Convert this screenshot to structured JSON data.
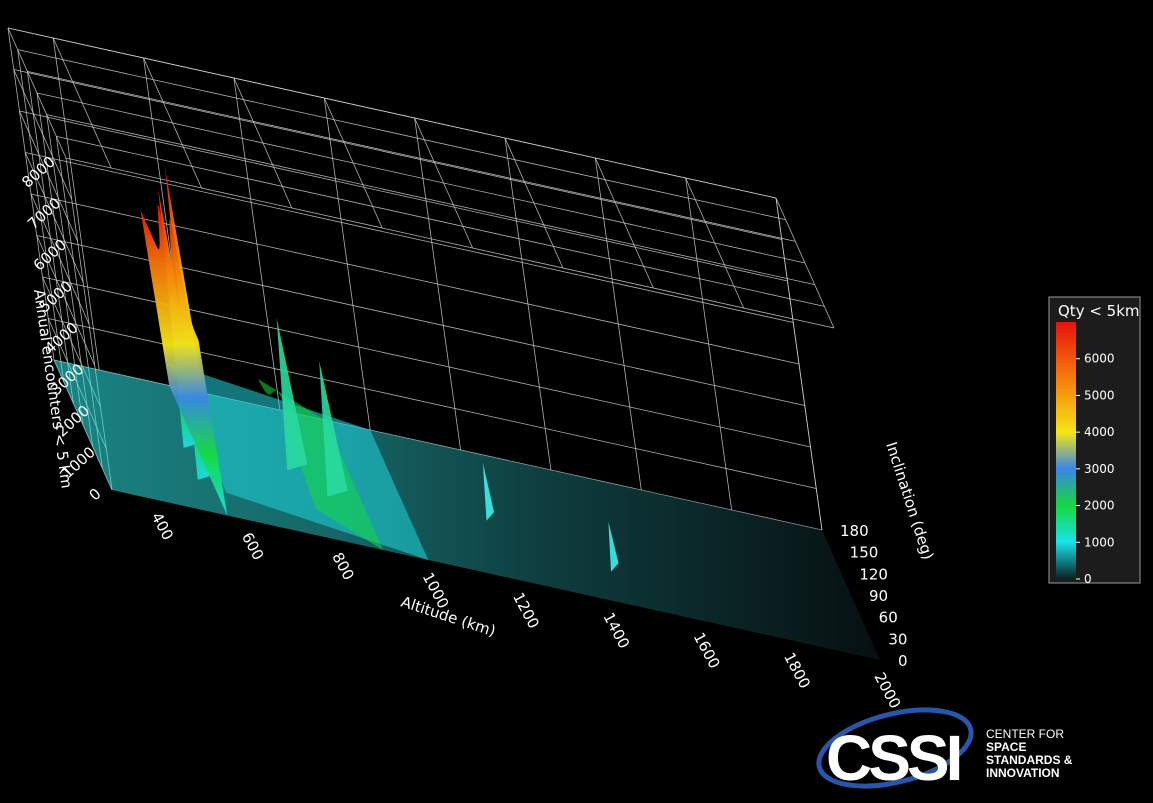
{
  "chart_data": {
    "type": "surface3d",
    "title": "",
    "xlabel": "Altitude (km)",
    "ylabel": "Inclination (deg)",
    "zlabel": "Annual encounters < 5 km",
    "x_ticks": [
      400,
      600,
      800,
      1000,
      1200,
      1400,
      1600,
      1800,
      2000
    ],
    "y_ticks": [
      0,
      30,
      60,
      90,
      120,
      150,
      180
    ],
    "z_ticks": [
      0,
      1000,
      2000,
      3000,
      4000,
      5000,
      6000,
      7000,
      8000
    ],
    "xlim": [
      300,
      2000
    ],
    "ylim": [
      0,
      180
    ],
    "zlim": [
      0,
      8000
    ],
    "grid": true,
    "colorbar": {
      "title": "Qty < 5km",
      "ticks": [
        0,
        1000,
        2000,
        3000,
        4000,
        5000,
        6000
      ],
      "range": [
        0,
        7000
      ],
      "colors": [
        "#0d1f22",
        "#18e3e8",
        "#16d840",
        "#3a86e8",
        "#f5e514",
        "#f57a0a",
        "#e8110c"
      ]
    },
    "notable_peaks": [
      {
        "altitude": 550,
        "inclination": 53,
        "value": 7500
      },
      {
        "altitude": 550,
        "inclination": 97,
        "value": 6200
      },
      {
        "altitude": 780,
        "inclination": 98,
        "value": 3600
      },
      {
        "altitude": 850,
        "inclination": 71,
        "value": 3200
      },
      {
        "altitude": 1200,
        "inclination": 88,
        "value": 1300
      },
      {
        "altitude": 1450,
        "inclination": 52,
        "value": 1100
      }
    ]
  },
  "logo": {
    "mark": "CSSI",
    "line1": "CENTER FOR",
    "line2": "SPACE",
    "line3": "STANDARDS &",
    "line4": "INNOVATION"
  }
}
